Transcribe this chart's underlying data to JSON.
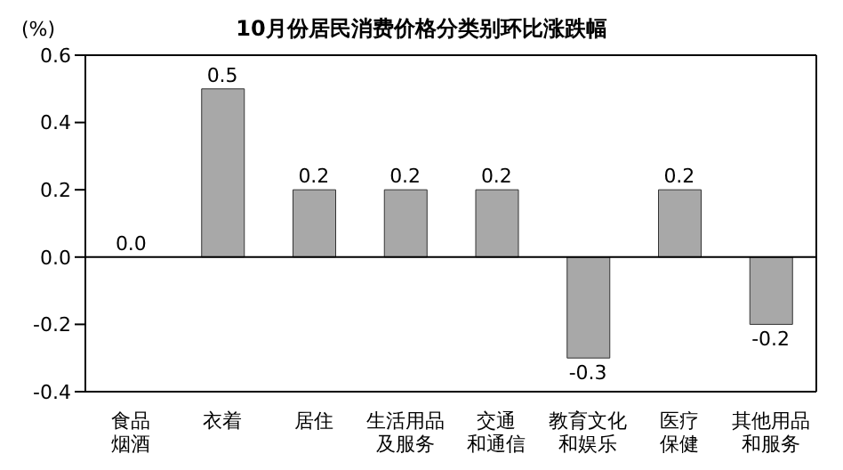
{
  "chart_data": {
    "type": "bar",
    "title": "10月份居民消费价格分类别环比涨跌幅",
    "ylabel": "(%)",
    "categories": [
      "食品烟酒",
      "衣着",
      "居住",
      "生活用品及服务",
      "交通和通信",
      "教育文化和娱乐",
      "医疗保健",
      "其他用品和服务"
    ],
    "values": [
      0.0,
      0.5,
      0.2,
      0.2,
      0.2,
      -0.3,
      0.2,
      -0.2
    ],
    "value_labels": [
      "0.0",
      "0.5",
      "0.2",
      "0.2",
      "0.2",
      "-0.3",
      "0.2",
      "-0.2"
    ],
    "color": "#a8a8a8",
    "ylim": [
      -0.4,
      0.6
    ],
    "yticks": [
      {
        "value": -0.4,
        "label": "-0.4"
      },
      {
        "value": -0.2,
        "label": "-0.2"
      },
      {
        "value": 0,
        "label": "0.0"
      },
      {
        "value": 0.2,
        "label": "0.2"
      },
      {
        "value": 0.4,
        "label": "0.4"
      },
      {
        "value": 0.6,
        "label": "0.6"
      }
    ],
    "ref_lines": [
      {
        "axis": "y",
        "value": 0,
        "color": "#000000"
      }
    ],
    "grid": false
  }
}
